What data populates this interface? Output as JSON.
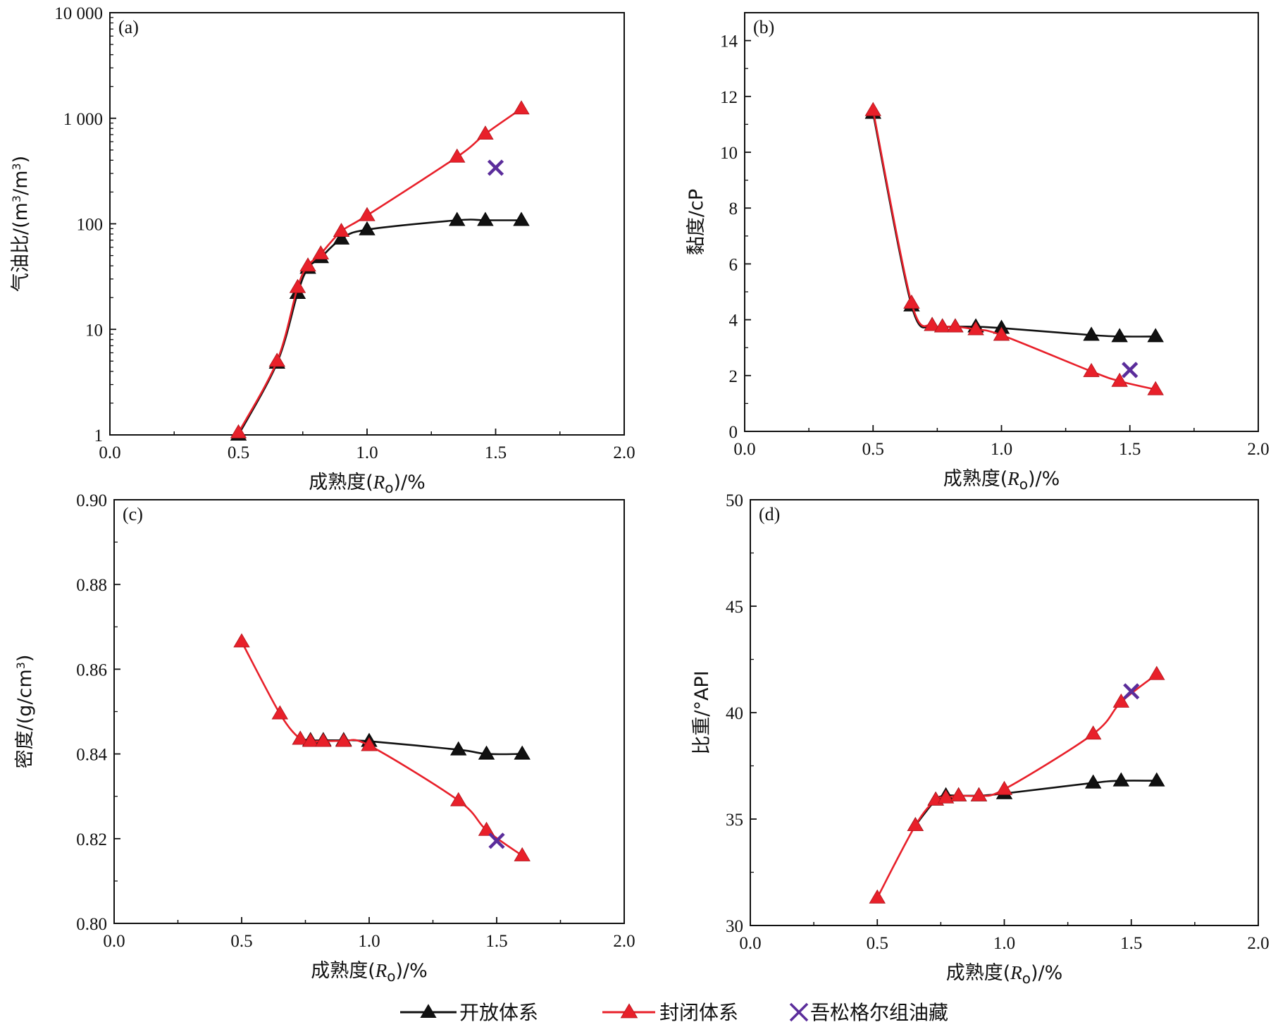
{
  "colors": {
    "open": "#111111",
    "closed": "#e8202a",
    "reservoir": "#5b2d9b",
    "marker_edge_closed": "#b0151c"
  },
  "legend": {
    "open_label": "开放体系",
    "closed_label": "封闭体系",
    "reservoir_label": "吾松格尔组油藏"
  },
  "chart_data": [
    {
      "type": "line",
      "panel_label": "(a)",
      "xlabel": "成熟度(Ro)/%",
      "ylabel": "气油比/(m³/m³)",
      "xlim": [
        0,
        2
      ],
      "ylim": [
        1,
        10000
      ],
      "yscale": "log",
      "xticks": [
        0,
        0.5,
        1.0,
        1.5,
        2.0
      ],
      "xtick_labels": [
        "0.0",
        "0.5",
        "1.0",
        "1.5",
        "2.0"
      ],
      "yticks": [
        1,
        10,
        100,
        1000,
        10000
      ],
      "ytick_labels": [
        "1",
        "10",
        "100",
        "1 000",
        "10 000"
      ],
      "series": [
        {
          "key": "open",
          "x": [
            0.5,
            0.65,
            0.73,
            0.77,
            0.82,
            0.9,
            1.0,
            1.35,
            1.46,
            1.6
          ],
          "y": [
            1.0,
            4.8,
            22,
            38,
            48,
            72,
            88,
            108,
            108,
            108
          ]
        },
        {
          "key": "closed",
          "x": [
            0.5,
            0.65,
            0.73,
            0.77,
            0.82,
            0.9,
            1.0,
            1.35,
            1.46,
            1.6
          ],
          "y": [
            1.05,
            5.0,
            25,
            40,
            52,
            85,
            120,
            430,
            710,
            1230
          ]
        }
      ],
      "reservoir_point": {
        "x": 1.5,
        "y": 340
      }
    },
    {
      "type": "line",
      "panel_label": "(b)",
      "xlabel": "成熟度(Ro)/%",
      "ylabel": "黏度/cP",
      "xlim": [
        0,
        2
      ],
      "ylim": [
        0,
        15
      ],
      "yscale": "linear",
      "xticks": [
        0,
        0.5,
        1.0,
        1.5,
        2.0
      ],
      "xtick_labels": [
        "0.0",
        "0.5",
        "1.0",
        "1.5",
        "2.0"
      ],
      "yticks": [
        0,
        2,
        4,
        6,
        8,
        10,
        12,
        14
      ],
      "ytick_labels": [
        "0",
        "2",
        "4",
        "6",
        "8",
        "10",
        "12",
        "14"
      ],
      "series": [
        {
          "key": "open",
          "x": [
            0.5,
            0.65,
            0.73,
            0.77,
            0.82,
            0.9,
            1.0,
            1.35,
            1.46,
            1.6
          ],
          "y": [
            11.4,
            4.5,
            3.8,
            3.75,
            3.75,
            3.75,
            3.7,
            3.45,
            3.4,
            3.4
          ]
        },
        {
          "key": "closed",
          "x": [
            0.5,
            0.65,
            0.73,
            0.77,
            0.82,
            0.9,
            1.0,
            1.35,
            1.46,
            1.6
          ],
          "y": [
            11.5,
            4.6,
            3.8,
            3.75,
            3.75,
            3.65,
            3.45,
            2.15,
            1.8,
            1.5
          ]
        }
      ],
      "reservoir_point": {
        "x": 1.5,
        "y": 2.2
      }
    },
    {
      "type": "line",
      "panel_label": "(c)",
      "xlabel": "成熟度(Ro)/%",
      "ylabel": "密度/(g/cm³)",
      "xlim": [
        0,
        2
      ],
      "ylim": [
        0.8,
        0.9
      ],
      "yscale": "linear",
      "xticks": [
        0,
        0.5,
        1.0,
        1.5,
        2.0
      ],
      "xtick_labels": [
        "0.0",
        "0.5",
        "1.0",
        "1.5",
        "2.0"
      ],
      "yticks": [
        0.8,
        0.82,
        0.84,
        0.86,
        0.88,
        0.9
      ],
      "ytick_labels": [
        "0.80",
        "0.82",
        "0.84",
        "0.86",
        "0.88",
        "0.90"
      ],
      "series": [
        {
          "key": "open",
          "x": [
            0.73,
            0.77,
            0.82,
            0.9,
            1.0,
            1.35,
            1.46,
            1.6
          ],
          "y": [
            0.8435,
            0.8432,
            0.8432,
            0.8432,
            0.843,
            0.841,
            0.84,
            0.84
          ]
        },
        {
          "key": "closed",
          "x": [
            0.5,
            0.65,
            0.73,
            0.77,
            0.82,
            0.9,
            1.0,
            1.35,
            1.46,
            1.6
          ],
          "y": [
            0.8665,
            0.8495,
            0.8435,
            0.843,
            0.843,
            0.843,
            0.842,
            0.829,
            0.822,
            0.816
          ]
        }
      ],
      "reservoir_point": {
        "x": 1.5,
        "y": 0.8195
      }
    },
    {
      "type": "line",
      "panel_label": "(d)",
      "xlabel": "成熟度(Ro)/%",
      "ylabel": "比重/°API",
      "xlim": [
        0,
        2
      ],
      "ylim": [
        30,
        50
      ],
      "yscale": "linear",
      "xticks": [
        0,
        0.5,
        1.0,
        1.5,
        2.0
      ],
      "xtick_labels": [
        "0.0",
        "0.5",
        "1.0",
        "1.5",
        "2.0"
      ],
      "yticks": [
        30,
        35,
        40,
        45,
        50
      ],
      "ytick_labels": [
        "30",
        "35",
        "40",
        "45",
        "50"
      ],
      "series": [
        {
          "key": "open",
          "x": [
            0.65,
            0.73,
            0.77,
            0.82,
            0.9,
            1.0,
            1.35,
            1.46,
            1.6
          ],
          "y": [
            34.7,
            35.9,
            36.1,
            36.1,
            36.1,
            36.2,
            36.7,
            36.8,
            36.8
          ]
        },
        {
          "key": "closed",
          "x": [
            0.5,
            0.65,
            0.73,
            0.77,
            0.82,
            0.9,
            1.0,
            1.35,
            1.46,
            1.6
          ],
          "y": [
            31.3,
            34.7,
            35.9,
            36.0,
            36.1,
            36.1,
            36.4,
            39.0,
            40.5,
            41.8
          ]
        }
      ],
      "reservoir_point": {
        "x": 1.5,
        "y": 41.0
      }
    }
  ]
}
